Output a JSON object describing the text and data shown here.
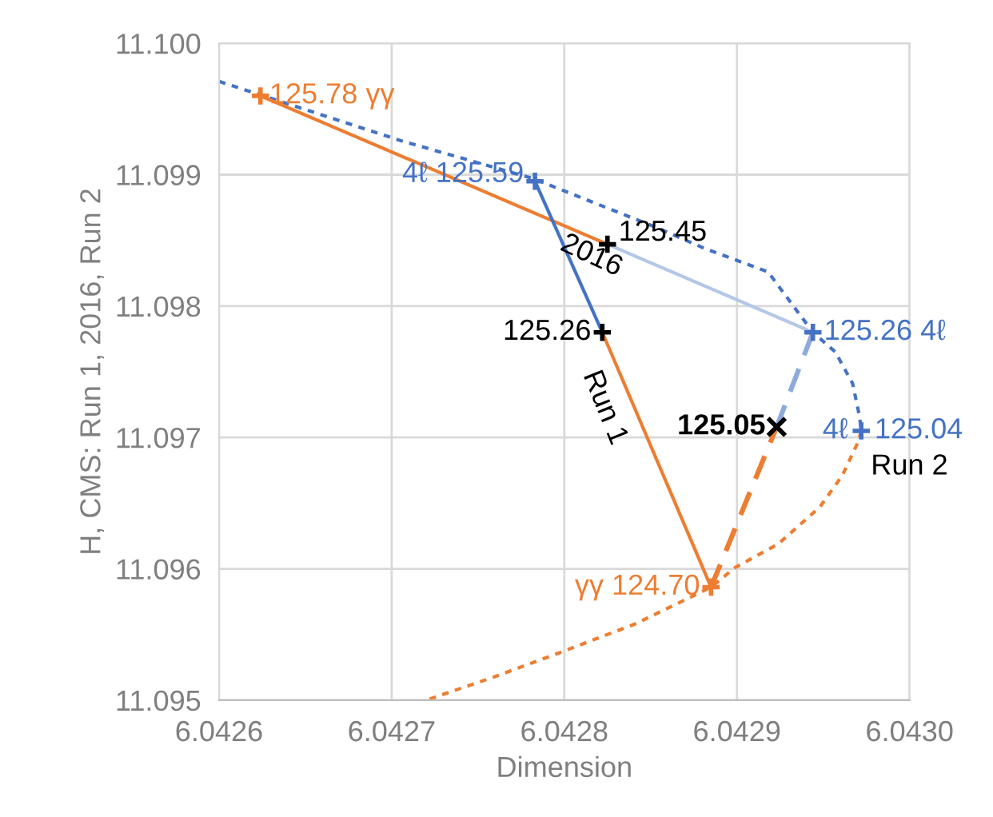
{
  "chart_data": {
    "type": "scatter",
    "xlabel": "Dimension",
    "ylabel": "H, CMS: Run 1, 2016, Run 2",
    "xlim": [
      6.0426,
      6.043
    ],
    "xticks": [
      6.0426,
      6.0427,
      6.0428,
      6.0429,
      {
        "value": 6.043,
        "label": "6.0430"
      }
    ],
    "ylim": [
      11.095,
      11.1
    ],
    "yticks": [
      11.095,
      11.096,
      11.097,
      11.098,
      11.099,
      {
        "value": 11.1,
        "label": "11.100"
      }
    ],
    "grid": true,
    "series": [
      {
        "type": "line",
        "color": "#4472c4",
        "line_style": "dotted",
        "marker": "none",
        "x": [
          6.0426,
          6.042705,
          6.042782,
          6.042853,
          6.042881,
          6.042918,
          6.042944,
          6.042957,
          6.042967,
          6.042971,
          6.042972
        ],
        "values": [
          11.09971,
          11.09926,
          11.09897,
          11.0986,
          11.09844,
          11.09826,
          11.0978,
          11.09765,
          11.09741,
          11.09716,
          11.09705
        ]
      },
      {
        "type": "line",
        "color": "#ed7d31",
        "line_style": "dotted",
        "marker": "none",
        "x": [
          6.042972,
          6.04297,
          6.042961,
          6.042948,
          6.042924,
          6.042899,
          6.042885,
          6.042841,
          6.042797,
          6.04276,
          6.04272
        ],
        "values": [
          11.09705,
          11.09696,
          11.09671,
          11.09647,
          11.09619,
          11.09601,
          11.09586,
          11.09558,
          11.09536,
          11.09518,
          11.095
        ]
      },
      {
        "type": "line",
        "color": "#ed7d31",
        "line_style": "solid",
        "marker": "none",
        "x": [
          6.042624,
          6.042825
        ],
        "values": [
          11.0996,
          11.09847
        ]
      },
      {
        "type": "line",
        "color": "#ed7d31",
        "line_style": "solid",
        "marker": "none",
        "x": [
          6.042822,
          6.042885
        ],
        "values": [
          11.0978,
          11.09586
        ]
      },
      {
        "type": "line",
        "color": "#4472c4",
        "line_style": "solid",
        "marker": "none",
        "x": [
          6.042783,
          6.042822
        ],
        "values": [
          11.09895,
          11.0978
        ]
      },
      {
        "type": "line",
        "color": "#b4c7e7",
        "line_style": "solid",
        "marker": "none",
        "x": [
          6.042825,
          6.042944
        ],
        "values": [
          11.09847,
          11.0978
        ]
      },
      {
        "type": "line",
        "color": "#8faadc",
        "line_style": "dashed",
        "marker": "none",
        "x": [
          6.042944,
          6.042923
        ],
        "values": [
          11.0978,
          11.09708
        ]
      },
      {
        "type": "line",
        "color": "#ed7d31",
        "line_style": "dashed",
        "marker": "none",
        "x": [
          6.042885,
          6.042923
        ],
        "values": [
          11.09586,
          11.09708
        ]
      },
      {
        "color": "#ed7d31",
        "marker": "cross",
        "x": [
          6.042624,
          6.042885
        ],
        "values": [
          11.0996,
          11.09586
        ]
      },
      {
        "color": "#4472c4",
        "marker": "cross",
        "x": [
          6.042783,
          6.042944,
          6.042972
        ],
        "values": [
          11.09895,
          11.0978,
          11.09705
        ]
      },
      {
        "color": "#000000",
        "marker": "cross",
        "x": [
          6.042825,
          6.042822
        ],
        "values": [
          11.09847,
          11.0978
        ]
      },
      {
        "color": "#000000",
        "marker": "x",
        "x": [
          6.042923
        ],
        "values": [
          11.09708
        ]
      }
    ],
    "annotations": [
      "2016",
      "Run 1",
      "Run 2",
      {
        "text": "125.78 γγ",
        "x": 6.042624,
        "y": 11.0996
      },
      {
        "text": "γγ 124.70",
        "x": 6.042885,
        "y": 11.09586
      },
      {
        "text": "4ℓ 125.59",
        "x": 6.042783,
        "y": 11.09895
      },
      {
        "text": "125.26 4ℓ",
        "x": 6.042944,
        "y": 11.0978
      },
      {
        "text": "4ℓ 125.04",
        "x": 6.042972,
        "y": 11.09705
      },
      {
        "text": "125.45",
        "x": 6.042825,
        "y": 11.09847
      },
      {
        "text": "125.26",
        "x": 6.042822,
        "y": 11.0978
      },
      {
        "text": "125.05",
        "x": 6.042923,
        "y": 11.09708
      }
    ]
  }
}
